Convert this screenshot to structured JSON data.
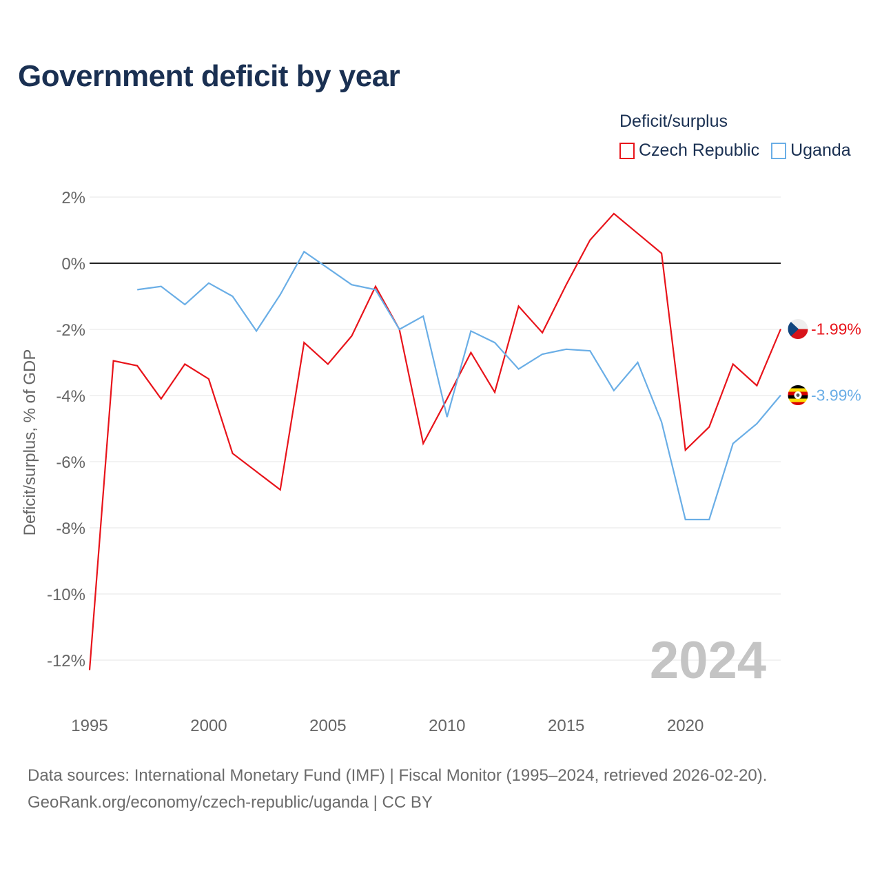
{
  "title": "Government deficit by year",
  "legend": {
    "title": "Deficit/surplus",
    "items": [
      {
        "label": "Czech Republic",
        "color": "#e8141b"
      },
      {
        "label": "Uganda",
        "color": "#6aaee6"
      }
    ]
  },
  "footer": {
    "line1": "Data sources: International Monetary Fund (IMF) | Fiscal Monitor (1995–2024, retrieved 2026-02-20).",
    "line2": "GeoRank.org/economy/czech-republic/uganda | CC BY"
  },
  "chart_data": {
    "type": "line",
    "title": "Government deficit by year",
    "ylabel": "Deficit/surplus, % of GDP",
    "xlabel": "",
    "xlim": [
      1995,
      2024
    ],
    "ylim": [
      -13,
      2
    ],
    "yticks": [
      2,
      0,
      -2,
      -4,
      -6,
      -8,
      -10,
      -12
    ],
    "ytick_labels": [
      "2%",
      "0%",
      "-2%",
      "-4%",
      "-6%",
      "-8%",
      "-10%",
      "-12%"
    ],
    "xticks": [
      1995,
      2000,
      2005,
      2010,
      2015,
      2020
    ],
    "xtick_labels": [
      "1995",
      "2000",
      "2005",
      "2010",
      "2015",
      "2020"
    ],
    "year_watermark": "2024",
    "grid": true,
    "zero_line": true,
    "series": [
      {
        "name": "Czech Republic",
        "color": "#e8141b",
        "end_label": "-1.99%",
        "flag": "czech",
        "x": [
          1995,
          1996,
          1997,
          1998,
          1999,
          2000,
          2001,
          2002,
          2003,
          2004,
          2005,
          2006,
          2007,
          2008,
          2009,
          2010,
          2011,
          2012,
          2013,
          2014,
          2015,
          2016,
          2017,
          2018,
          2019,
          2020,
          2021,
          2022,
          2023,
          2024
        ],
        "values": [
          -12.3,
          -2.95,
          -3.1,
          -4.1,
          -3.05,
          -3.5,
          -5.75,
          -6.3,
          -6.85,
          -2.4,
          -3.05,
          -2.2,
          -0.7,
          -2.0,
          -5.45,
          -4.1,
          -2.7,
          -3.9,
          -1.3,
          -2.1,
          -0.65,
          0.7,
          1.5,
          0.9,
          0.3,
          -5.65,
          -4.95,
          -3.05,
          -3.7,
          -1.99
        ]
      },
      {
        "name": "Uganda",
        "color": "#6aaee6",
        "end_label": "-3.99%",
        "flag": "uganda",
        "x": [
          1997,
          1998,
          1999,
          2000,
          2001,
          2002,
          2003,
          2004,
          2005,
          2006,
          2007,
          2008,
          2009,
          2010,
          2011,
          2012,
          2013,
          2014,
          2015,
          2016,
          2017,
          2018,
          2019,
          2020,
          2021,
          2022,
          2023,
          2024
        ],
        "values": [
          -0.8,
          -0.7,
          -1.25,
          -0.6,
          -1.0,
          -2.05,
          -0.95,
          0.35,
          -0.15,
          -0.65,
          -0.8,
          -2.0,
          -1.6,
          -4.65,
          -2.05,
          -2.4,
          -3.2,
          -2.75,
          -2.6,
          -2.65,
          -3.85,
          -3.0,
          -4.8,
          -7.75,
          -7.75,
          -5.45,
          -4.85,
          -3.99
        ]
      }
    ]
  }
}
